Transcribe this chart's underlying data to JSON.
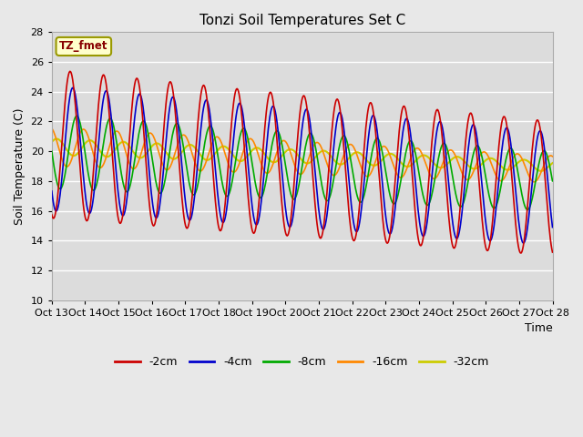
{
  "title": "Tonzi Soil Temperatures Set C",
  "xlabel": "Time",
  "ylabel": "Soil Temperature (C)",
  "ylim": [
    10,
    28
  ],
  "annotation_text": "TZ_fmet",
  "background_outer": "#e8e8e8",
  "background_inner": "#dcdcdc",
  "grid_color": "#ffffff",
  "series_colors": {
    "-2cm": "#cc0000",
    "-4cm": "#0000cc",
    "-8cm": "#00aa00",
    "-16cm": "#ff8800",
    "-32cm": "#cccc00"
  },
  "xtick_labels": [
    "Oct 13",
    "Oct 14",
    "Oct 15",
    "Oct 16",
    "Oct 17",
    "Oct 18",
    "Oct 19",
    "Oct 20",
    "Oct 21",
    "Oct 22",
    "Oct 23",
    "Oct 24",
    "Oct 25",
    "Oct 26",
    "Oct 27",
    "Oct 28"
  ],
  "ytick_vals": [
    10,
    12,
    14,
    16,
    18,
    20,
    22,
    24,
    26,
    28
  ]
}
